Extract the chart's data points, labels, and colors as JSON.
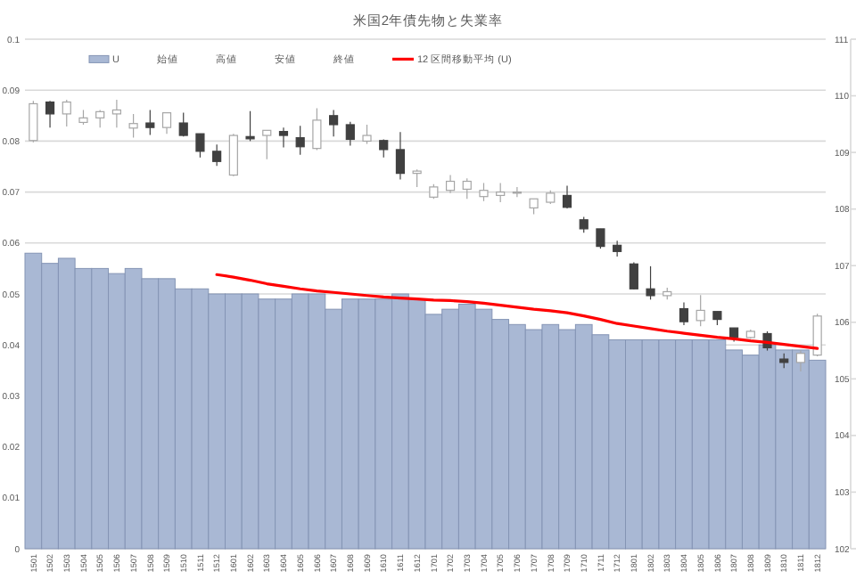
{
  "chart_data": {
    "type": "bar",
    "title": "米国2年債先物と失業率",
    "categories": [
      "1501",
      "1502",
      "1503",
      "1504",
      "1505",
      "1506",
      "1507",
      "1508",
      "1509",
      "1510",
      "1511",
      "1512",
      "1601",
      "1602",
      "1603",
      "1604",
      "1605",
      "1606",
      "1607",
      "1608",
      "1609",
      "1610",
      "1611",
      "1612",
      "1701",
      "1702",
      "1703",
      "1704",
      "1705",
      "1706",
      "1707",
      "1708",
      "1709",
      "1710",
      "1711",
      "1712",
      "1801",
      "1802",
      "1803",
      "1804",
      "1805",
      "1806",
      "1807",
      "1808",
      "1809",
      "1810",
      "1811",
      "1812"
    ],
    "series": [
      {
        "name": "U",
        "color": "#a9b8d4",
        "values": [
          0.058,
          0.056,
          0.057,
          0.055,
          0.055,
          0.054,
          0.055,
          0.053,
          0.053,
          0.051,
          0.051,
          0.05,
          0.05,
          0.05,
          0.049,
          0.049,
          0.05,
          0.05,
          0.047,
          0.049,
          0.049,
          0.049,
          0.05,
          0.049,
          0.046,
          0.047,
          0.048,
          0.047,
          0.045,
          0.044,
          0.043,
          0.044,
          0.043,
          0.044,
          0.042,
          0.041,
          0.041,
          0.041,
          0.041,
          0.041,
          0.041,
          0.041,
          0.039,
          0.038,
          0.04,
          0.039,
          0.039,
          0.037
        ]
      },
      {
        "type": "candlestick",
        "axis": "y2",
        "colors": [
          "#ffffff",
          "#404040",
          "#ffffff",
          "#ffffff",
          "#ffffff",
          "#ffffff",
          "#ffffff",
          "#404040",
          "#ffffff",
          "#404040",
          "#404040",
          "#404040",
          "#ffffff",
          "#404040",
          "#ffffff",
          "#404040",
          "#404040",
          "#ffffff",
          "#404040",
          "#404040",
          "#ffffff",
          "#404040",
          "#404040",
          "#ffffff",
          "#ffffff",
          "#ffffff",
          "#ffffff",
          "#ffffff",
          "#ffffff",
          "#ffffff",
          "#ffffff",
          "#ffffff",
          "#404040",
          "#404040",
          "#404040",
          "#404040",
          "#404040",
          "#404040",
          "#ffffff",
          "#404040",
          "#ffffff",
          "#404040",
          "#404040",
          "#ffffff",
          "#404040",
          "#404040",
          "#ffffff",
          "#ffffff"
        ],
        "ohlc": [
          [
            109.21,
            109.91,
            109.18,
            109.86
          ],
          [
            109.89,
            109.91,
            109.44,
            109.68
          ],
          [
            109.68,
            109.93,
            109.46,
            109.89
          ],
          [
            109.53,
            109.75,
            109.49,
            109.61
          ],
          [
            109.61,
            109.75,
            109.44,
            109.72
          ],
          [
            109.68,
            109.93,
            109.44,
            109.75
          ],
          [
            109.43,
            109.68,
            109.26,
            109.51
          ],
          [
            109.52,
            109.75,
            109.31,
            109.44
          ],
          [
            109.44,
            109.7,
            109.33,
            109.7
          ],
          [
            109.52,
            109.7,
            109.28,
            109.3
          ],
          [
            109.33,
            109.33,
            108.91,
            109.02
          ],
          [
            109.02,
            109.14,
            108.76,
            108.84
          ],
          [
            108.6,
            109.33,
            108.58,
            109.3
          ],
          [
            109.28,
            109.73,
            109.2,
            109.24
          ],
          [
            109.3,
            109.39,
            108.88,
            109.39
          ],
          [
            109.37,
            109.44,
            109.09,
            109.3
          ],
          [
            109.26,
            109.47,
            108.96,
            109.1
          ],
          [
            109.07,
            109.78,
            109.04,
            109.57
          ],
          [
            109.65,
            109.75,
            109.28,
            109.49
          ],
          [
            109.49,
            109.54,
            109.12,
            109.23
          ],
          [
            109.2,
            109.49,
            109.15,
            109.3
          ],
          [
            109.21,
            109.23,
            108.91,
            109.05
          ],
          [
            109.05,
            109.36,
            108.52,
            108.63
          ],
          [
            108.63,
            108.7,
            108.39,
            108.67
          ],
          [
            108.21,
            108.44,
            108.18,
            108.39
          ],
          [
            108.33,
            108.6,
            108.28,
            108.49
          ],
          [
            108.35,
            108.54,
            108.18,
            108.49
          ],
          [
            108.22,
            108.46,
            108.14,
            108.33
          ],
          [
            108.24,
            108.46,
            108.12,
            108.3
          ],
          [
            108.28,
            108.39,
            108.21,
            108.3
          ],
          [
            108.02,
            108.18,
            107.91,
            108.18
          ],
          [
            108.12,
            108.33,
            108.09,
            108.28
          ],
          [
            108.24,
            108.41,
            108.01,
            108.03
          ],
          [
            107.81,
            107.86,
            107.58,
            107.65
          ],
          [
            107.65,
            107.65,
            107.3,
            107.34
          ],
          [
            107.36,
            107.44,
            107.16,
            107.25
          ],
          [
            107.03,
            107.06,
            106.58,
            106.59
          ],
          [
            106.59,
            106.99,
            106.4,
            106.47
          ],
          [
            106.47,
            106.61,
            106.4,
            106.54
          ],
          [
            106.24,
            106.35,
            105.95,
            106.01
          ],
          [
            106.03,
            106.48,
            105.93,
            106.21
          ],
          [
            106.19,
            106.19,
            105.95,
            106.05
          ],
          [
            105.9,
            105.9,
            105.66,
            105.73
          ],
          [
            105.73,
            105.87,
            105.71,
            105.84
          ],
          [
            105.8,
            105.84,
            105.5,
            105.55
          ],
          [
            105.35,
            105.45,
            105.19,
            105.29
          ],
          [
            105.29,
            105.5,
            105.13,
            105.45
          ],
          [
            105.42,
            106.15,
            105.4,
            106.11
          ]
        ]
      },
      {
        "name": "12 区間移動平均 (U)",
        "type": "line",
        "color": "#ff0000",
        "values": [
          null,
          null,
          null,
          null,
          null,
          null,
          null,
          null,
          null,
          null,
          null,
          0.0538,
          0.0533,
          0.0527,
          0.052,
          0.0515,
          0.051,
          0.0506,
          0.0503,
          0.05,
          0.0497,
          0.0494,
          0.0492,
          0.049,
          0.0488,
          0.0487,
          0.0485,
          0.0482,
          0.0478,
          0.0474,
          0.047,
          0.0467,
          0.0463,
          0.0457,
          0.045,
          0.0442,
          0.0437,
          0.0432,
          0.0427,
          0.0423,
          0.0419,
          0.0415,
          0.0412,
          0.0408,
          0.0405,
          0.0401,
          0.0397,
          0.0393
        ]
      }
    ],
    "annotations": [
      "始値",
      "高値",
      "安値",
      "終値"
    ],
    "ylim": [
      0,
      0.1
    ],
    "yticks": [
      0,
      0.01,
      0.02,
      0.03,
      0.04,
      0.05,
      0.06,
      0.07,
      0.08,
      0.09,
      0.1
    ],
    "y2lim": [
      102,
      111
    ],
    "y2ticks": [
      102,
      103,
      104,
      105,
      106,
      107,
      108,
      109,
      110,
      111
    ],
    "grid": "y",
    "legend": "top"
  }
}
